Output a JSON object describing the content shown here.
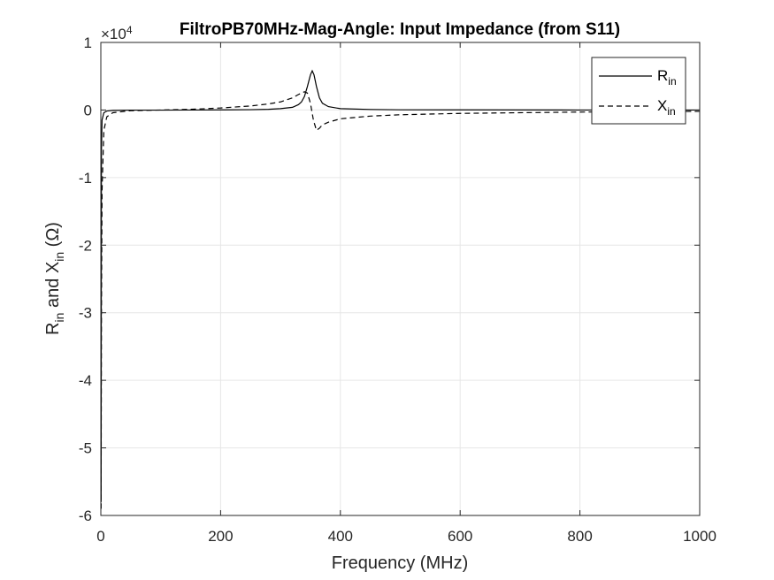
{
  "chart_data": {
    "type": "line",
    "title": "FiltroPB70MHz-Mag-Angle: Input Impedance (from S11)",
    "xlabel": "Frequency (MHz)",
    "ylabel": {
      "base_r": "R",
      "sub_r": "in",
      "mid": " and X",
      "sub_x": "in",
      "unit": " (Ω)"
    },
    "xlim": [
      0,
      1000
    ],
    "ylim": [
      -6,
      1
    ],
    "x_ticks": [
      0,
      200,
      400,
      600,
      800,
      1000
    ],
    "y_ticks": [
      -6,
      -5,
      -4,
      -3,
      -2,
      -1,
      0,
      1
    ],
    "y_exponent": {
      "base": "×10",
      "power": "4"
    },
    "grid": true,
    "legend_position": "top-right",
    "series": [
      {
        "name": "R",
        "name_sub": "in",
        "style": "solid",
        "color": "#000000",
        "x": [
          0.5,
          1,
          2,
          5,
          10,
          20,
          50,
          100,
          150,
          200,
          250,
          280,
          300,
          320,
          330,
          335,
          340,
          345,
          350,
          353,
          356,
          360,
          365,
          370,
          380,
          400,
          450,
          500,
          600,
          800,
          1000
        ],
        "y": [
          -5.8,
          -0.6,
          -0.15,
          -0.04,
          -0.015,
          -0.006,
          -0.002,
          -0.002,
          0.0,
          0.002,
          0.005,
          0.01,
          0.02,
          0.04,
          0.08,
          0.12,
          0.2,
          0.35,
          0.52,
          0.58,
          0.52,
          0.35,
          0.18,
          0.1,
          0.05,
          0.02,
          0.008,
          0.003,
          0.002,
          0.0,
          0.0
        ]
      },
      {
        "name": "X",
        "name_sub": "in",
        "style": "dashed",
        "color": "#000000",
        "x": [
          0.5,
          1,
          2,
          5,
          10,
          20,
          50,
          100,
          150,
          200,
          250,
          280,
          300,
          320,
          330,
          340,
          345,
          350,
          355,
          360,
          365,
          370,
          380,
          400,
          450,
          500,
          600,
          800,
          1000
        ],
        "y": [
          -5.9,
          -3.0,
          -1.2,
          -0.3,
          -0.1,
          -0.04,
          -0.01,
          0.0,
          0.01,
          0.03,
          0.06,
          0.09,
          0.12,
          0.18,
          0.23,
          0.27,
          0.25,
          0.1,
          -0.15,
          -0.3,
          -0.27,
          -0.22,
          -0.18,
          -0.13,
          -0.09,
          -0.07,
          -0.05,
          -0.03,
          -0.02
        ]
      }
    ]
  }
}
